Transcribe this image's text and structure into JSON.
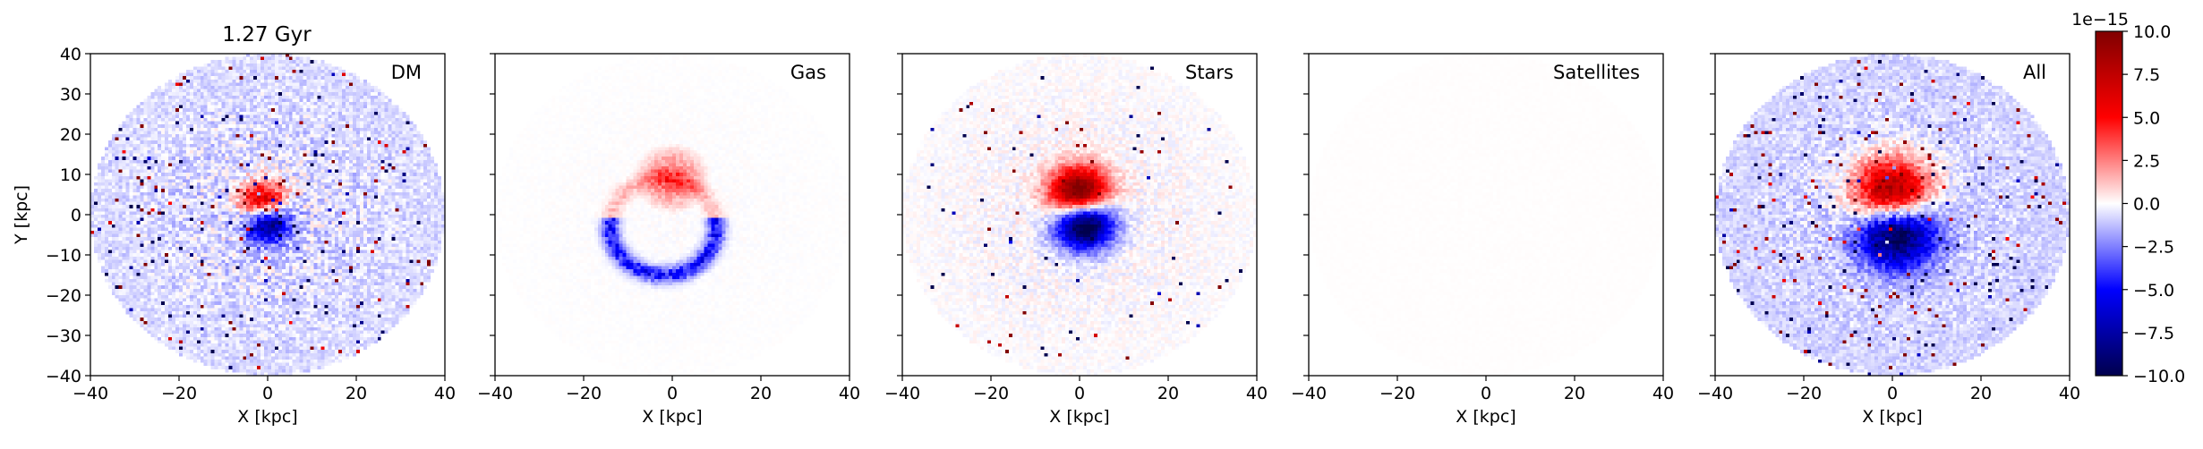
{
  "figure": {
    "title": "1.27 Gyr"
  },
  "chart_data": [
    {
      "type": "heatmap",
      "panel": "DM",
      "title": "1.27 Gyr",
      "xlabel": "X [kpc]",
      "ylabel": "Y [kpc]",
      "xlim": [
        -40,
        40
      ],
      "ylim": [
        -40,
        40
      ],
      "xticks": [
        -40,
        -20,
        0,
        20,
        40
      ],
      "yticks": [
        -40,
        -30,
        -20,
        -10,
        0,
        10,
        20,
        30,
        40
      ],
      "field": {
        "disk_radius": 40,
        "background": -1.0,
        "dipole_peak": 9.5,
        "dipole_offset": [
          -1,
          1
        ],
        "dipole_width": 3.5,
        "noise": 3.5,
        "speckle_rate": 0.035
      }
    },
    {
      "type": "heatmap",
      "panel": "Gas",
      "xlabel": "X [kpc]",
      "xlim": [
        -40,
        40
      ],
      "ylim": [
        -40,
        40
      ],
      "xticks": [
        -40,
        -20,
        0,
        20,
        40
      ],
      "field": {
        "disk_radius": 40,
        "background": 0.0,
        "arc_positive": {
          "center": [
            0,
            9
          ],
          "radius": 9,
          "peak": 4.0
        },
        "arc_negative": {
          "center": [
            -2,
            -3
          ],
          "radius": 12,
          "peak": -6.0
        },
        "noise": 0.4,
        "speckle_rate": 0.0
      }
    },
    {
      "type": "heatmap",
      "panel": "Stars",
      "xlabel": "X [kpc]",
      "xlim": [
        -40,
        40
      ],
      "ylim": [
        -40,
        40
      ],
      "xticks": [
        -40,
        -20,
        0,
        20,
        40
      ],
      "field": {
        "disk_radius": 40,
        "background": 0.0,
        "dipole_peak": 14.0,
        "dipole_offset": [
          0,
          2
        ],
        "dipole_width": 4.5,
        "noise": 2.0,
        "speckle_rate": 0.01
      }
    },
    {
      "type": "heatmap",
      "panel": "Satellites",
      "xlabel": "X [kpc]",
      "xlim": [
        -40,
        40
      ],
      "ylim": [
        -40,
        40
      ],
      "xticks": [
        -40,
        -20,
        0,
        20,
        40
      ],
      "field": {
        "disk_radius": 40,
        "background": 0.05,
        "dipole_peak": 0.0,
        "noise": 0.05,
        "speckle_rate": 0.0
      }
    },
    {
      "type": "heatmap",
      "panel": "All",
      "xlabel": "X [kpc]",
      "xlim": [
        -40,
        40
      ],
      "ylim": [
        -40,
        40
      ],
      "xticks": [
        -40,
        -20,
        0,
        20,
        40
      ],
      "field": {
        "disk_radius": 40,
        "background": -1.2,
        "dipole_peak": 12.0,
        "dipole_offset": [
          0,
          1
        ],
        "dipole_width": 6.0,
        "noise": 3.0,
        "speckle_rate": 0.03
      }
    }
  ],
  "colorbar": {
    "colormap": "seismic",
    "vmin": -10.0,
    "vmax": 10.0,
    "scale_label": "1e−15",
    "ticks": [
      "10.0",
      "7.5",
      "5.0",
      "2.5",
      "0.0",
      "−2.5",
      "−5.0",
      "−7.5",
      "−10.0"
    ],
    "tick_values": [
      10,
      7.5,
      5,
      2.5,
      0,
      -2.5,
      -5,
      -7.5,
      -10
    ]
  },
  "tick_labels": {
    "x": [
      "−40",
      "−20",
      "0",
      "20",
      "40"
    ],
    "y": [
      "40",
      "30",
      "20",
      "10",
      "0",
      "−10",
      "−20",
      "−30",
      "−40"
    ]
  }
}
